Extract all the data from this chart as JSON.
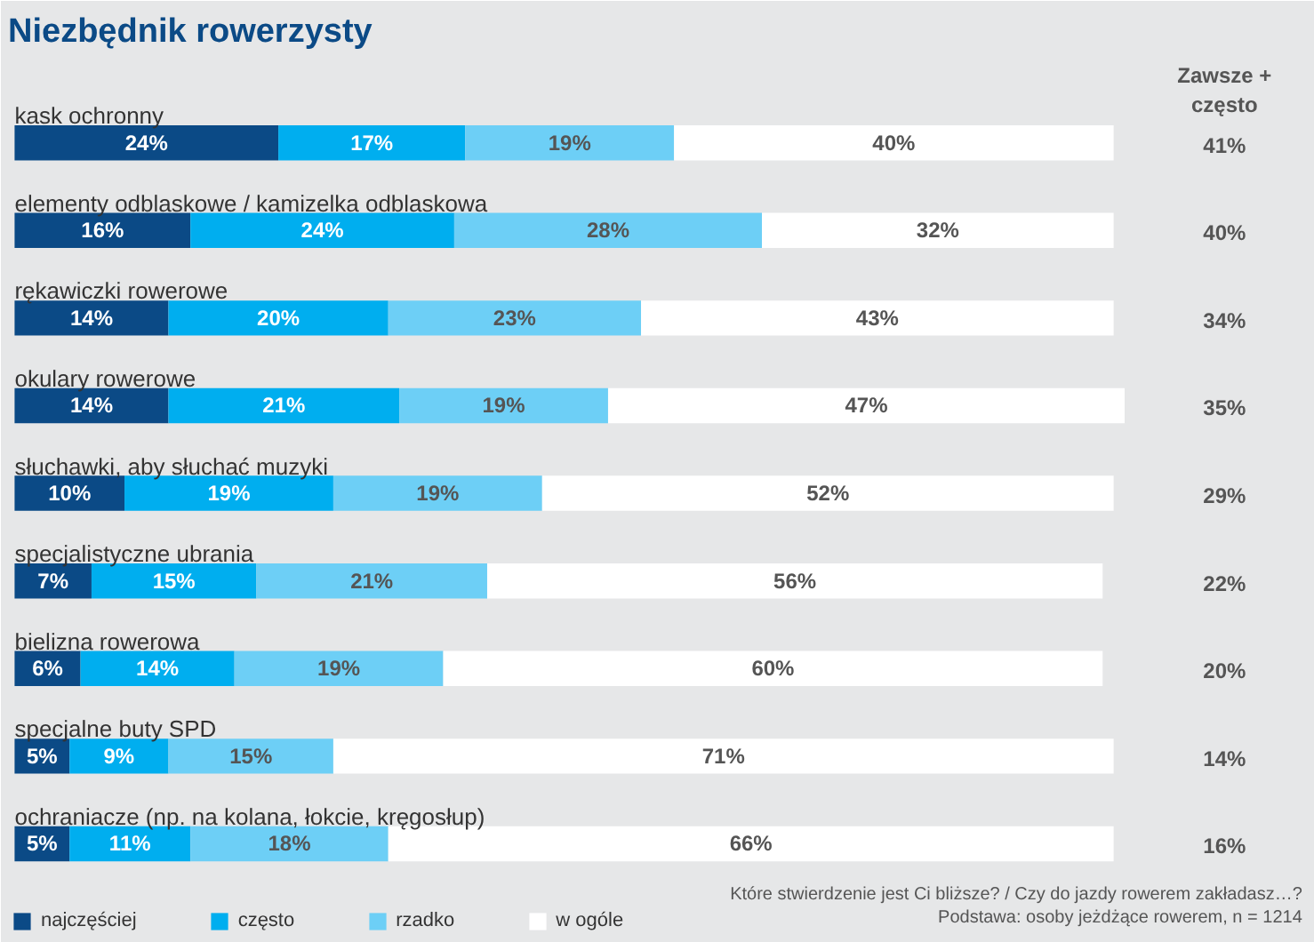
{
  "chart_data": {
    "type": "bar",
    "orientation": "horizontal",
    "stacked": true,
    "title": "Niezbędnik rowerzysty",
    "categories": [
      "kask ochronny",
      "elementy odblaskowe / kamizelka odblaskowa",
      "rękawiczki rowerowe",
      "okulary rowerowe",
      "słuchawki, aby słuchać muzyki",
      "specjalistyczne ubrania",
      "bielizna rowerowa",
      "specjalne buty SPD",
      "ochraniacze (np. na kolana, łokcie, kręgosłup)"
    ],
    "series": [
      {
        "name": "najczęściej",
        "color": "#0b4a86",
        "values": [
          24,
          16,
          14,
          14,
          10,
          7,
          6,
          5,
          5
        ],
        "value_labels": [
          "24%",
          "16%",
          "14%",
          "14%",
          "10%",
          "7%",
          "6%",
          "5%",
          "5%"
        ]
      },
      {
        "name": "często",
        "color": "#00aeef",
        "values": [
          17,
          24,
          20,
          21,
          19,
          15,
          14,
          9,
          11
        ],
        "value_labels": [
          "17%",
          "24%",
          "20%",
          "21%",
          "19%",
          "15%",
          "14%",
          "9%",
          "11%"
        ]
      },
      {
        "name": "rzadko",
        "color": "#6dcff6",
        "values": [
          19,
          28,
          23,
          19,
          19,
          21,
          19,
          15,
          18
        ],
        "value_labels": [
          "19%",
          "28%",
          "23%",
          "19%",
          "19%",
          "21%",
          "19%",
          "15%",
          "18%"
        ]
      },
      {
        "name": "w ogóle",
        "color": "#ffffff",
        "values": [
          40,
          32,
          43,
          47,
          52,
          56,
          60,
          71,
          66
        ],
        "value_labels": [
          "40%",
          "32%",
          "43%",
          "47%",
          "52%",
          "56%",
          "60%",
          "71%",
          "66%"
        ]
      }
    ],
    "annotations": [
      "Zawsze +\nczęsto",
      "41%",
      "40%",
      "34%",
      "35%",
      "29%",
      "22%",
      "20%",
      "14%",
      "16%",
      "Które stwierdzenie jest Ci bliższe? / Czy do jazdy rowerem zakładasz…?",
      "Podstawa: osoby jeżdżące rowerem, n = 1214"
    ],
    "legend": "bottom left",
    "tick_labels": false
  }
}
